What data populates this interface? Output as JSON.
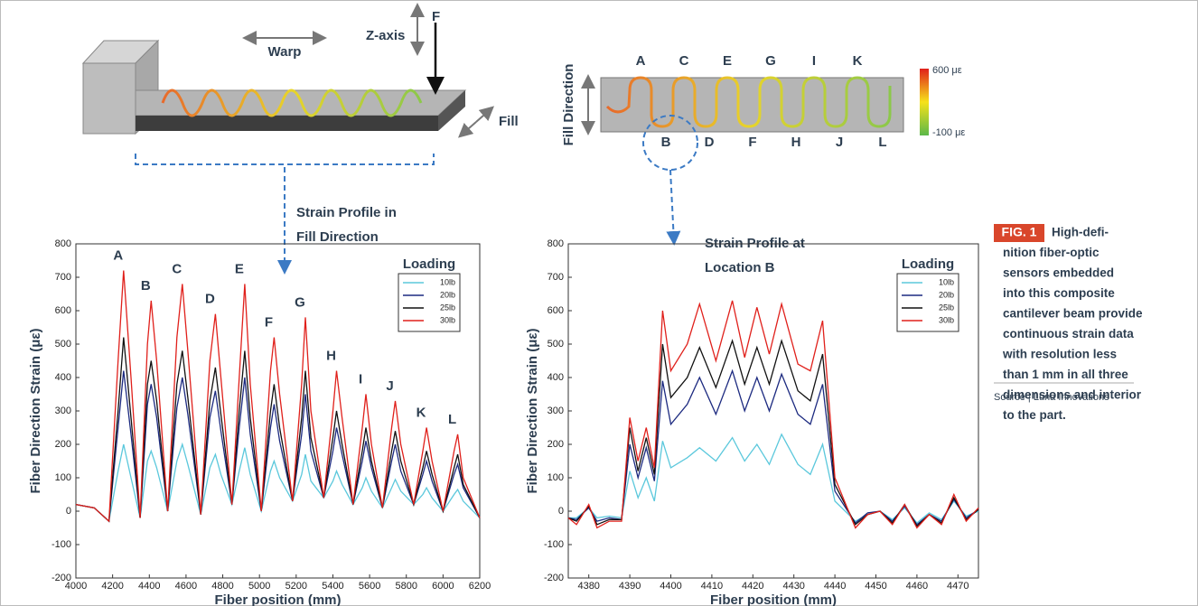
{
  "beam_diagram": {
    "warp": "Warp",
    "z_axis": "Z-axis",
    "force": "F",
    "fill": "Fill",
    "callout": [
      "Strain Profile in",
      "Fill Direction"
    ]
  },
  "sensor_diagram": {
    "axis_label": "Fill Direction",
    "top_points": [
      "A",
      "C",
      "E",
      "G",
      "I",
      "K"
    ],
    "bottom_points": [
      "B",
      "D",
      "F",
      "H",
      "J",
      "L"
    ],
    "scale_max": "600 με",
    "scale_min": "-100 με",
    "callout": [
      "Strain Profile at",
      "Location B"
    ]
  },
  "caption": {
    "badge": "FIG. 1",
    "lines": [
      "High-defi-",
      "nition fiber-optic",
      "sensors embedded",
      "into this composite",
      "cantilever beam provide",
      "continuous strain data",
      "with resolution less",
      "than 1 mm in all three",
      "dimensions and interior",
      "to the part."
    ],
    "source": "Source | Luna Innovations"
  },
  "chart_data": [
    {
      "type": "line",
      "x_label": "Fiber position (mm)",
      "y_label": "Fiber Direction Strain (με)",
      "legend_title": "Loading",
      "legend": "upper right",
      "xlim": [
        4000,
        6200
      ],
      "xticks": [
        4000,
        4200,
        4400,
        4600,
        4800,
        5000,
        5200,
        5400,
        5600,
        5800,
        6000,
        6200
      ],
      "ylim": [
        -200,
        800
      ],
      "yticks": [
        -200,
        -100,
        0,
        100,
        200,
        300,
        400,
        500,
        600,
        700,
        800
      ],
      "x": [
        4000,
        4100,
        4180,
        4230,
        4260,
        4300,
        4350,
        4390,
        4410,
        4440,
        4500,
        4550,
        4580,
        4610,
        4680,
        4730,
        4760,
        4790,
        4850,
        4890,
        4920,
        4950,
        5010,
        5060,
        5080,
        5110,
        5180,
        5230,
        5250,
        5280,
        5350,
        5400,
        5420,
        5450,
        5510,
        5560,
        5580,
        5610,
        5670,
        5720,
        5740,
        5770,
        5840,
        5890,
        5910,
        5940,
        6000,
        6060,
        6080,
        6110,
        6200
      ],
      "series": [
        {
          "name": "10lb",
          "color": "#5bc8dc",
          "values": [
            20,
            10,
            -30,
            120,
            200,
            100,
            -20,
            150,
            180,
            130,
            0,
            150,
            200,
            140,
            -10,
            130,
            170,
            110,
            20,
            120,
            190,
            110,
            0,
            120,
            150,
            100,
            30,
            110,
            170,
            90,
            40,
            90,
            120,
            80,
            20,
            70,
            100,
            60,
            10,
            70,
            95,
            60,
            20,
            50,
            70,
            40,
            0,
            50,
            65,
            30,
            -20
          ]
        },
        {
          "name": "20lb",
          "color": "#1c2a80",
          "values": [
            20,
            10,
            -30,
            250,
            420,
            230,
            -20,
            320,
            380,
            280,
            0,
            310,
            400,
            290,
            -10,
            280,
            360,
            240,
            20,
            250,
            400,
            230,
            0,
            250,
            320,
            210,
            30,
            230,
            350,
            180,
            40,
            180,
            250,
            170,
            20,
            150,
            210,
            130,
            10,
            150,
            200,
            120,
            20,
            110,
            150,
            90,
            0,
            110,
            140,
            70,
            -20
          ]
        },
        {
          "name": "25lb",
          "color": "#111111",
          "values": [
            20,
            10,
            -30,
            300,
            520,
            280,
            -20,
            380,
            450,
            330,
            0,
            380,
            480,
            340,
            -10,
            330,
            430,
            290,
            20,
            300,
            480,
            280,
            0,
            300,
            380,
            250,
            30,
            280,
            420,
            220,
            40,
            220,
            300,
            200,
            20,
            180,
            250,
            150,
            10,
            180,
            240,
            150,
            20,
            130,
            180,
            110,
            0,
            130,
            170,
            80,
            -20
          ]
        },
        {
          "name": "30lb",
          "color": "#e0201b",
          "values": [
            20,
            10,
            -30,
            450,
            720,
            400,
            -20,
            500,
            630,
            450,
            0,
            520,
            680,
            480,
            -10,
            450,
            590,
            400,
            20,
            400,
            680,
            380,
            0,
            420,
            520,
            350,
            30,
            380,
            580,
            300,
            40,
            300,
            420,
            280,
            20,
            250,
            350,
            200,
            10,
            250,
            330,
            200,
            20,
            180,
            250,
            150,
            0,
            180,
            230,
            100,
            -20
          ]
        }
      ],
      "annotations": [
        {
          "text": "A",
          "x": 4260
        },
        {
          "text": "B",
          "x": 4410
        },
        {
          "text": "C",
          "x": 4580
        },
        {
          "text": "D",
          "x": 4760
        },
        {
          "text": "E",
          "x": 4920
        },
        {
          "text": "F",
          "x": 5080
        },
        {
          "text": "G",
          "x": 5250
        },
        {
          "text": "H",
          "x": 5420
        },
        {
          "text": "I",
          "x": 5580
        },
        {
          "text": "J",
          "x": 5740
        },
        {
          "text": "K",
          "x": 5910
        },
        {
          "text": "L",
          "x": 6080
        }
      ]
    },
    {
      "type": "line",
      "x_label": "Fiber position (mm)",
      "y_label": "Fiber Direction Strain (με)",
      "legend_title": "Loading",
      "legend": "upper right",
      "xlim": [
        4375,
        4475
      ],
      "xticks": [
        4380,
        4390,
        4400,
        4410,
        4420,
        4430,
        4440,
        4450,
        4460,
        4470
      ],
      "ylim": [
        -200,
        800
      ],
      "yticks": [
        -200,
        -100,
        0,
        100,
        200,
        300,
        400,
        500,
        600,
        700,
        800
      ],
      "x": [
        4375,
        4377,
        4380,
        4382,
        4385,
        4388,
        4390,
        4392,
        4394,
        4396,
        4398,
        4400,
        4404,
        4407,
        4411,
        4415,
        4418,
        4421,
        4424,
        4427,
        4431,
        4434,
        4437,
        4440,
        4445,
        4448,
        4451,
        4454,
        4457,
        4460,
        4463,
        4466,
        4469,
        4472,
        4475
      ],
      "series": [
        {
          "name": "10lb",
          "color": "#5bc8dc",
          "values": [
            -20,
            -20,
            10,
            -20,
            -15,
            -20,
            120,
            40,
            100,
            30,
            210,
            130,
            160,
            190,
            150,
            220,
            150,
            200,
            140,
            230,
            140,
            110,
            200,
            30,
            -30,
            -10,
            0,
            -25,
            10,
            -35,
            -5,
            -25,
            30,
            -15,
            0
          ]
        },
        {
          "name": "20lb",
          "color": "#1c2a80",
          "values": [
            -20,
            -25,
            10,
            -30,
            -20,
            -25,
            200,
            100,
            190,
            90,
            390,
            260,
            320,
            400,
            290,
            420,
            300,
            400,
            300,
            410,
            290,
            260,
            380,
            60,
            -35,
            -5,
            0,
            -30,
            15,
            -40,
            -10,
            -30,
            35,
            -20,
            5
          ]
        },
        {
          "name": "25lb",
          "color": "#111111",
          "values": [
            -20,
            -30,
            15,
            -40,
            -25,
            -25,
            250,
            120,
            220,
            110,
            500,
            340,
            400,
            490,
            370,
            510,
            380,
            490,
            380,
            510,
            360,
            330,
            470,
            80,
            -40,
            -10,
            0,
            -35,
            20,
            -45,
            -10,
            -35,
            40,
            -25,
            5
          ]
        },
        {
          "name": "30lb",
          "color": "#e0201b",
          "values": [
            -20,
            -40,
            20,
            -50,
            -30,
            -30,
            280,
            150,
            250,
            130,
            600,
            420,
            500,
            620,
            450,
            630,
            460,
            610,
            470,
            620,
            440,
            420,
            570,
            100,
            -50,
            -10,
            0,
            -40,
            20,
            -50,
            -10,
            -40,
            50,
            -30,
            10
          ]
        }
      ]
    }
  ]
}
